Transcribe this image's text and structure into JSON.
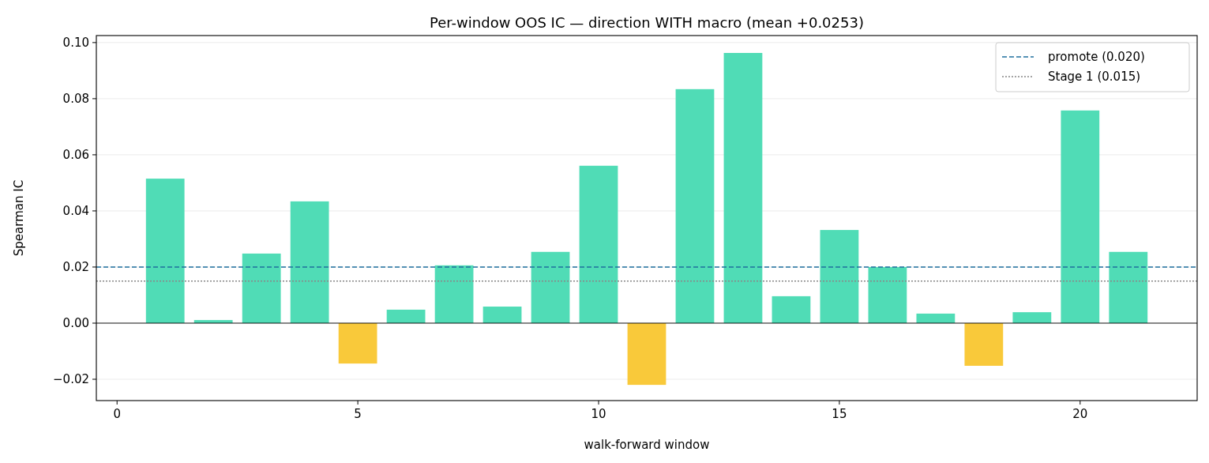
{
  "chart_data": {
    "type": "bar",
    "title": "Per-window OOS IC — direction WITH macro (mean +0.0253)",
    "xlabel": "walk-forward window",
    "ylabel": "Spearman IC",
    "x": [
      1,
      2,
      3,
      4,
      5,
      6,
      7,
      8,
      9,
      10,
      11,
      12,
      13,
      14,
      15,
      16,
      17,
      18,
      19,
      20,
      21
    ],
    "values": [
      0.0515,
      0.0011,
      0.0248,
      0.0434,
      -0.0144,
      0.0048,
      0.0206,
      0.0059,
      0.0254,
      0.0561,
      -0.022,
      0.0834,
      0.0963,
      0.0096,
      0.0332,
      0.02,
      0.0034,
      -0.0152,
      0.0039,
      0.0758,
      0.0254
    ],
    "colors": [
      "#50dcb6",
      "#50dcb6",
      "#50dcb6",
      "#50dcb6",
      "#f9c93a",
      "#50dcb6",
      "#50dcb6",
      "#50dcb6",
      "#50dcb6",
      "#50dcb6",
      "#f9c93a",
      "#50dcb6",
      "#50dcb6",
      "#50dcb6",
      "#50dcb6",
      "#50dcb6",
      "#50dcb6",
      "#f9c93a",
      "#50dcb6",
      "#50dcb6",
      "#50dcb6"
    ],
    "xlim": [
      -0.43,
      22.43
    ],
    "ylim": [
      -0.0276,
      0.1025
    ],
    "xticks": [
      0,
      5,
      10,
      15,
      20
    ],
    "yticks": [
      {
        "value": -0.02,
        "label": "−0.02"
      },
      {
        "value": 0,
        "label": "0.00"
      },
      {
        "value": 0.02,
        "label": "0.02"
      },
      {
        "value": 0.04,
        "label": "0.04"
      },
      {
        "value": 0.06,
        "label": "0.06"
      },
      {
        "value": 0.08,
        "label": "0.08"
      },
      {
        "value": 0.1,
        "label": "0.10"
      }
    ],
    "grid": "y",
    "legend": "top right",
    "ref_lines": [
      {
        "axis": "y",
        "value": 0,
        "color": "#000000",
        "line_style": "solid"
      },
      {
        "axis": "y",
        "value": 0.02,
        "label": "promote (0.020)",
        "color": "#1f6f9f",
        "line_style": "dashed"
      },
      {
        "axis": "y",
        "value": 0.015,
        "label": "Stage 1 (0.015)",
        "color": "#888888",
        "line_style": "dotted"
      }
    ]
  }
}
